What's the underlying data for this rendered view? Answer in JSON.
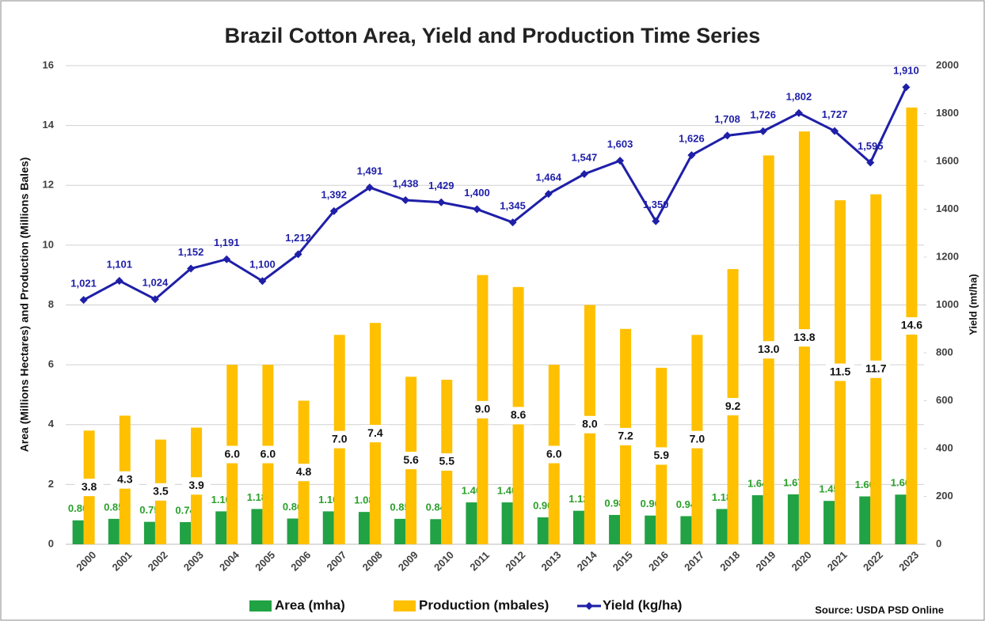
{
  "chart_data": {
    "type": "bar",
    "title": "Brazil Cotton Area, Yield and Production Time Series",
    "ylabel": "Area (Millions Hectares) and Production (Millions Bales)",
    "y2label": "Yield (mt/ha)",
    "source": "Source: USDA PSD Online",
    "categories": [
      "2000",
      "2001",
      "2002",
      "2003",
      "2004",
      "2005",
      "2006",
      "2007",
      "2008",
      "2009",
      "2010",
      "2011",
      "2012",
      "2013",
      "2014",
      "2015",
      "2016",
      "2017",
      "2018",
      "2019",
      "2020",
      "2021",
      "2022",
      "2023"
    ],
    "series": [
      {
        "name": "Area (mha)",
        "type": "bar",
        "color": "#21a244",
        "values": [
          0.8,
          0.85,
          0.75,
          0.74,
          1.1,
          1.18,
          0.86,
          1.1,
          1.08,
          0.85,
          0.84,
          1.4,
          1.4,
          0.9,
          1.12,
          0.98,
          0.96,
          0.94,
          1.18,
          1.64,
          1.67,
          1.45,
          1.6,
          1.66
        ],
        "value_labels": [
          "0.80",
          "0.85",
          "0.75",
          "0.74",
          "1.10",
          "1.18",
          "0.86",
          "1.10",
          "1.08",
          "0.85",
          "0.84",
          "1.40",
          "1.40",
          "0.90",
          "1.12",
          "0.98",
          "0.96",
          "0.94",
          "1.18",
          "1.64",
          "1.67",
          "1.45",
          "1.60",
          "1.66"
        ]
      },
      {
        "name": "Production (mbales)",
        "type": "bar",
        "color": "#ffc000",
        "values": [
          3.8,
          4.3,
          3.5,
          3.9,
          6.0,
          6.0,
          4.8,
          7.0,
          7.4,
          5.6,
          5.5,
          9.0,
          8.6,
          6.0,
          8.0,
          7.2,
          5.9,
          7.0,
          9.2,
          13.0,
          13.8,
          11.5,
          11.7,
          14.6
        ],
        "value_labels": [
          "3.8",
          "4.3",
          "3.5",
          "3.9",
          "6.0",
          "6.0",
          "4.8",
          "7.0",
          "7.4",
          "5.6",
          "5.5",
          "9.0",
          "8.6",
          "6.0",
          "8.0",
          "7.2",
          "5.9",
          "7.0",
          "9.2",
          "13.0",
          "13.8",
          "11.5",
          "11.7",
          "14.6"
        ]
      },
      {
        "name": "Yield (kg/ha)",
        "type": "line",
        "axis": "y2",
        "color": "#1f1fa8",
        "values": [
          1021,
          1101,
          1024,
          1152,
          1191,
          1100,
          1212,
          1392,
          1491,
          1438,
          1429,
          1400,
          1345,
          1464,
          1547,
          1603,
          1350,
          1626,
          1708,
          1726,
          1802,
          1727,
          1595,
          1910
        ],
        "value_labels": [
          "1,021",
          "1,101",
          "1,024",
          "1,152",
          "1,191",
          "1,100",
          "1,212",
          "1,392",
          "1,491",
          "1,438",
          "1,429",
          "1,400",
          "1,345",
          "1,464",
          "1,547",
          "1,603",
          "1,350",
          "1,626",
          "1,708",
          "1,726",
          "1,802",
          "1,727",
          "1,595",
          "1,910"
        ]
      }
    ],
    "ylim": [
      0,
      16
    ],
    "yticks": [
      0,
      2,
      4,
      6,
      8,
      10,
      12,
      14,
      16
    ],
    "y2lim": [
      0,
      2000
    ],
    "y2ticks": [
      0,
      200,
      400,
      600,
      800,
      1000,
      1200,
      1400,
      1600,
      1800,
      2000
    ],
    "grid": true,
    "legend": "bottom"
  }
}
